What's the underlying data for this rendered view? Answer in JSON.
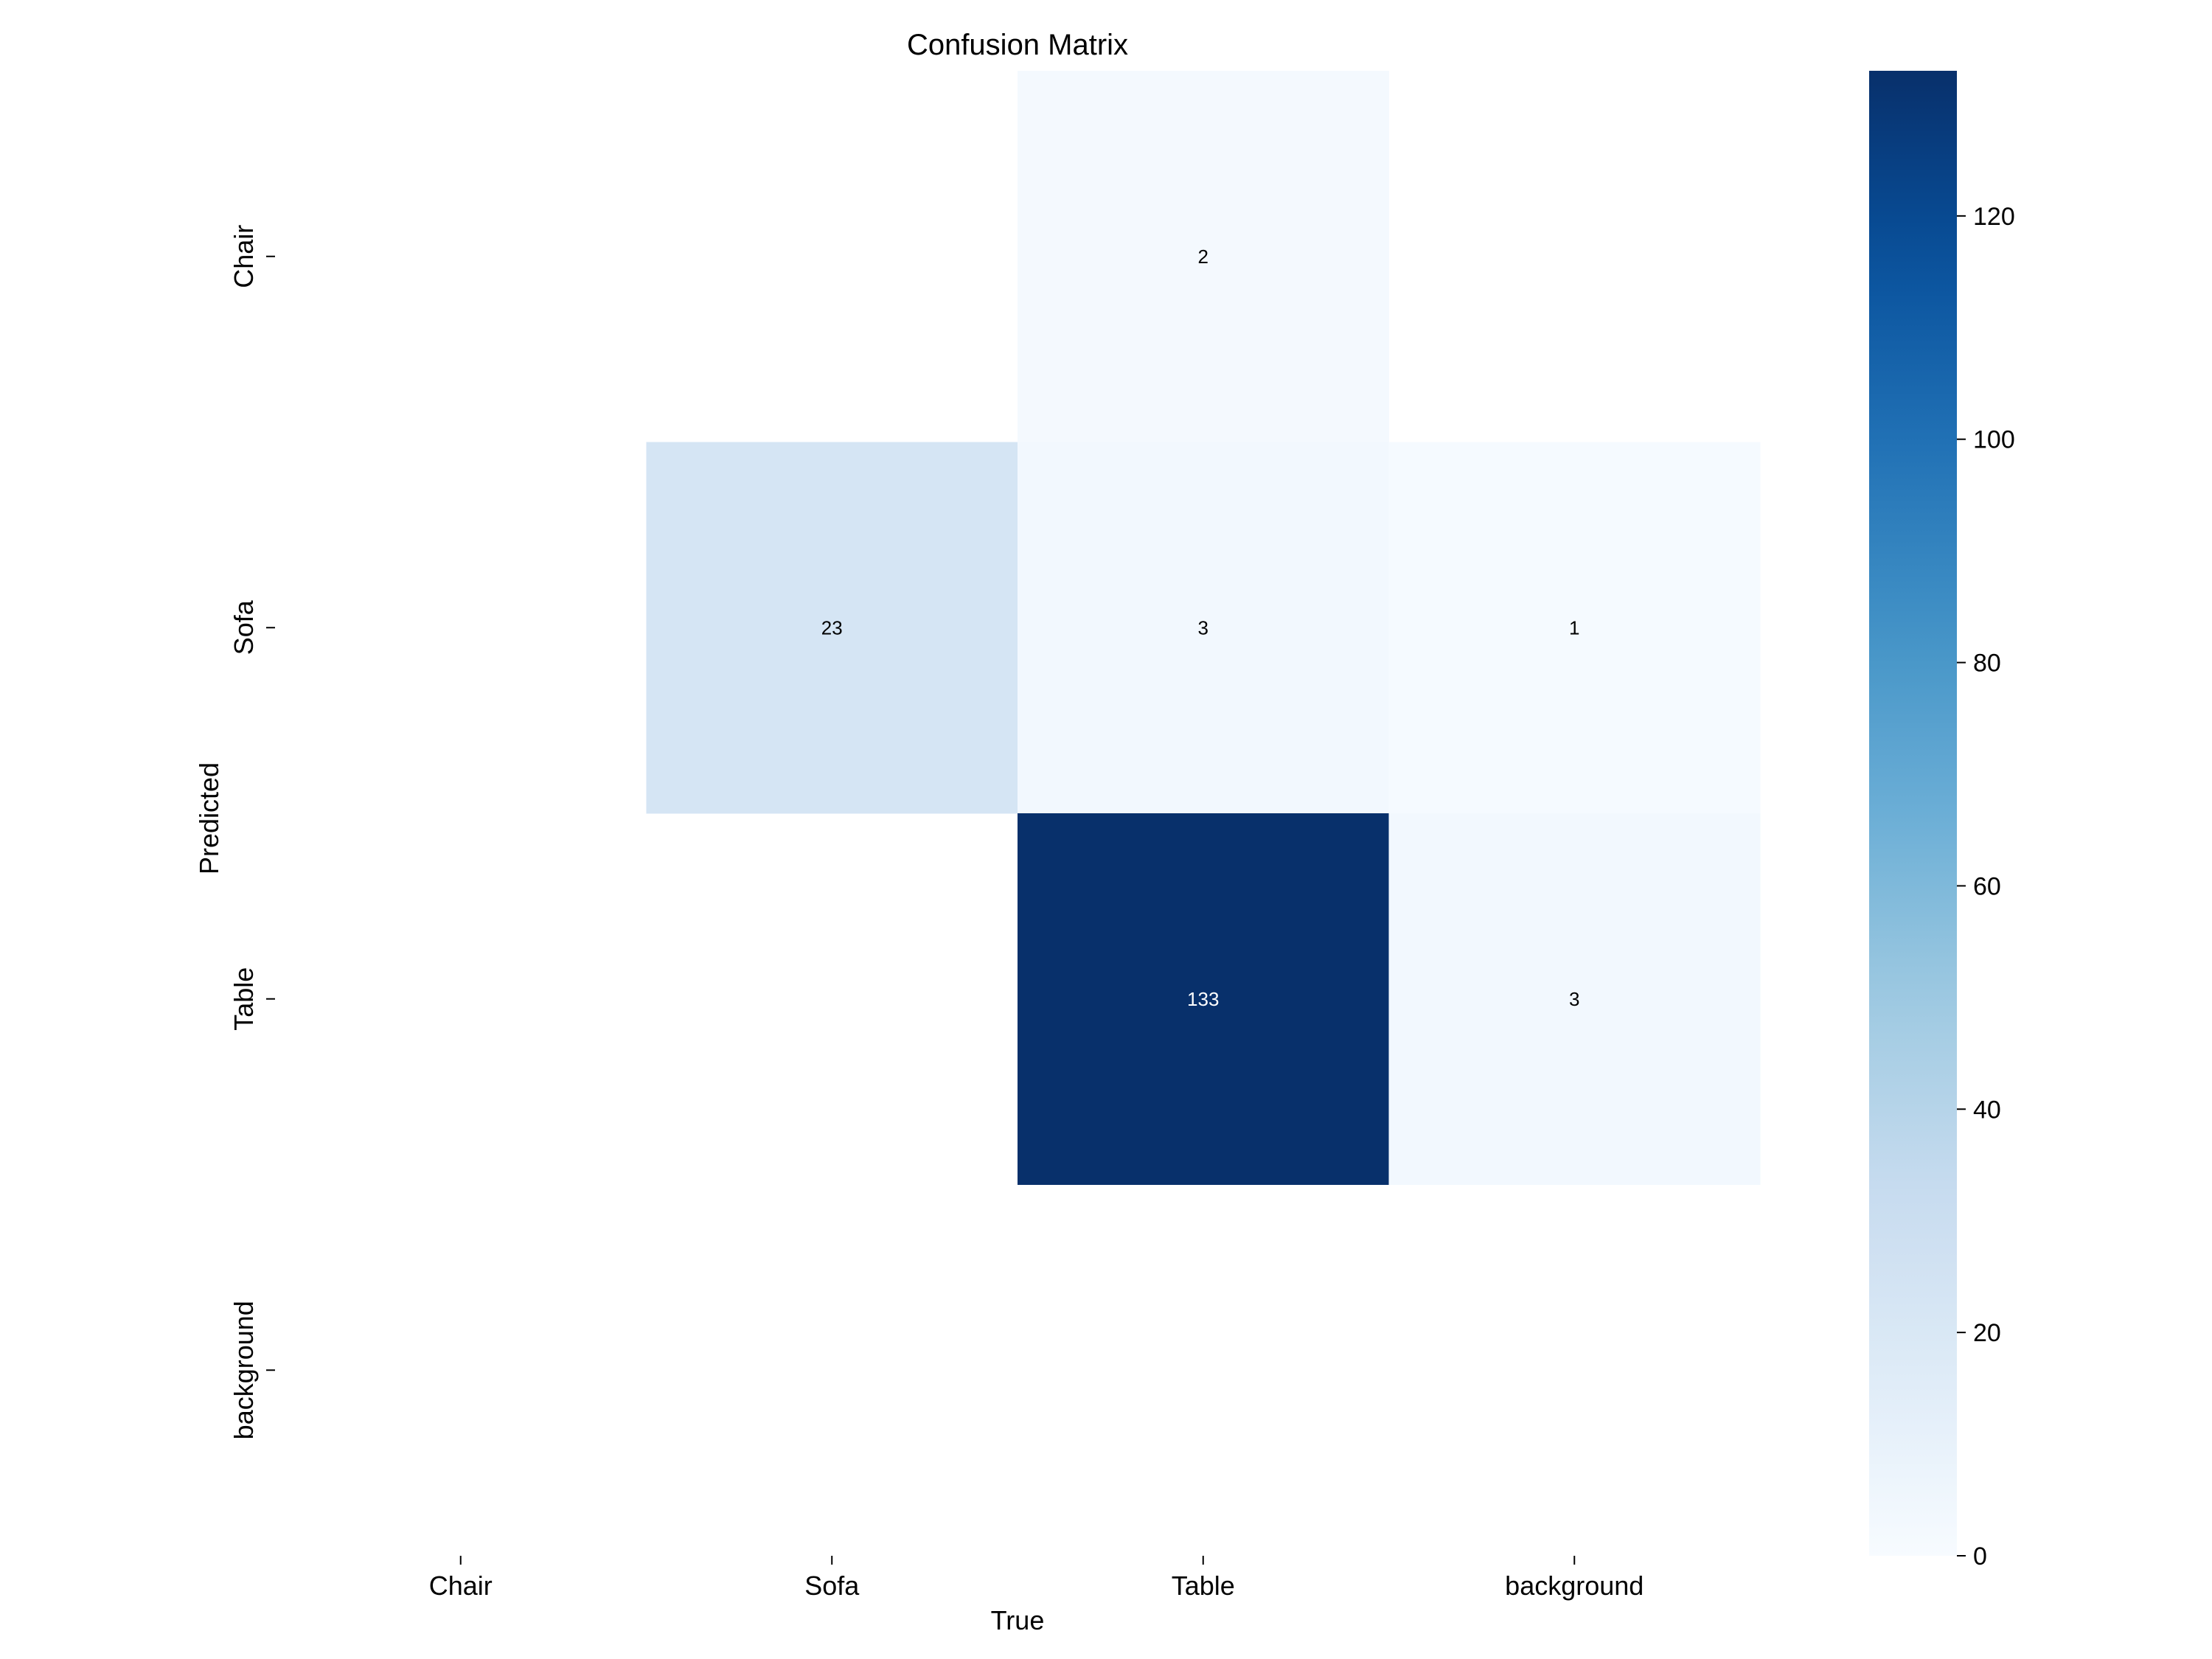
{
  "chart_data": {
    "type": "heatmap",
    "title": "Confusion Matrix",
    "xlabel": "True",
    "ylabel": "Predicted",
    "x_categories": [
      "Chair",
      "Sofa",
      "Table",
      "background"
    ],
    "y_categories": [
      "Chair",
      "Sofa",
      "Table",
      "background"
    ],
    "matrix": [
      [
        null,
        null,
        2,
        null
      ],
      [
        null,
        23,
        3,
        1
      ],
      [
        null,
        null,
        133,
        3
      ],
      [
        null,
        null,
        null,
        null
      ]
    ],
    "colormap": "Blues",
    "colors": {
      "low": "#f7fbff",
      "high": "#08306b"
    },
    "vmin": 0,
    "vmax": 133,
    "colorbar_ticks": [
      0,
      20,
      40,
      60,
      80,
      100,
      120
    ],
    "colorbar_tick_labels": [
      "0",
      "20",
      "40",
      "60",
      "80",
      "100",
      "120"
    ]
  }
}
